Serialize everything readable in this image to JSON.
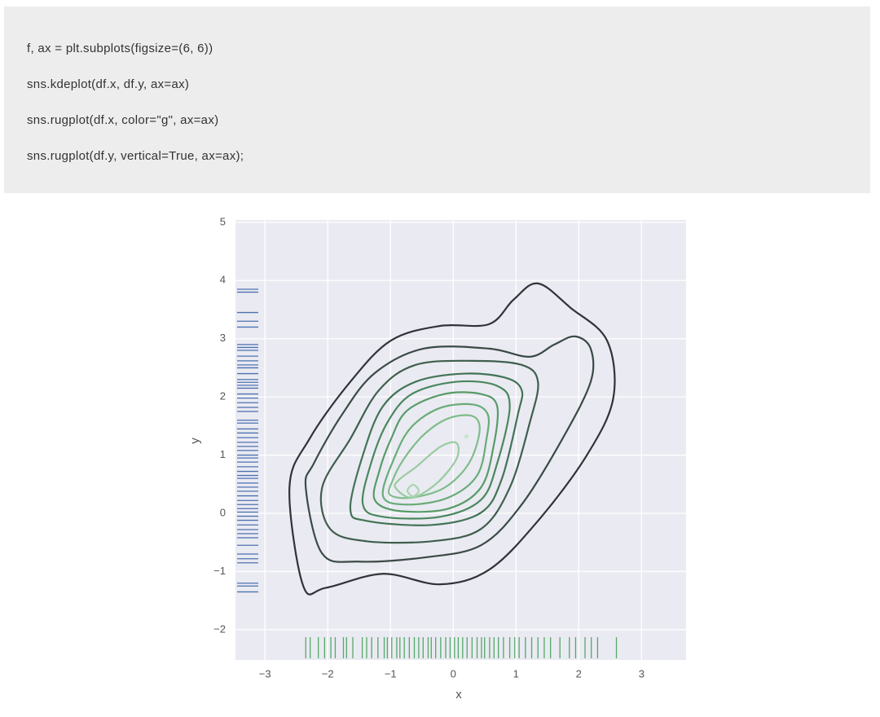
{
  "code": [
    "f, ax = plt.subplots(figsize=(6, 6))",
    "sns.kdeplot(df.x, df.y, ax=ax)",
    "sns.rugplot(df.x, color=\"g\", ax=ax)",
    "sns.rugplot(df.y, vertical=True, ax=ax);"
  ],
  "chart_data": {
    "type": "kde",
    "xlabel": "x",
    "ylabel": "y",
    "xlim": [
      -3.47,
      3.71
    ],
    "ylim": [
      -2.52,
      5.04
    ],
    "xticks": [
      {
        "value": -3,
        "label": "−3"
      },
      {
        "value": -2,
        "label": "−2"
      },
      {
        "value": -1,
        "label": "−1"
      },
      0,
      1,
      2,
      3
    ],
    "yticks": [
      {
        "value": -2,
        "label": "−2"
      },
      {
        "value": -1,
        "label": "−1"
      },
      0,
      1,
      2,
      3,
      4,
      5
    ],
    "grid": true,
    "contours": [
      {
        "color": "#2f3438",
        "x": [
          -2.61,
          -2.39,
          -2.03,
          -1.12,
          -0.21,
          0.57,
          1.35,
          2.13,
          2.55,
          2.45,
          1.87,
          1.35,
          0.96,
          0.57,
          -0.21,
          -0.99,
          -1.64,
          -2.29
        ],
        "y": [
          0.44,
          -1.25,
          -1.28,
          -1.04,
          -1.22,
          -0.97,
          -0.13,
          1.0,
          1.98,
          2.97,
          3.53,
          3.95,
          3.67,
          3.25,
          3.22,
          2.97,
          2.26,
          1.28
        ]
      },
      {
        "color": "#3a4a45",
        "x": [
          -2.35,
          -2.09,
          -1.51,
          -0.47,
          0.44,
          1.09,
          1.74,
          2.19,
          2.19,
          1.94,
          1.61,
          1.22,
          0.57,
          -0.47,
          -1.25,
          -1.77,
          -2.22
        ],
        "y": [
          0.44,
          -0.69,
          -0.83,
          -0.76,
          -0.55,
          0.15,
          1.28,
          2.26,
          2.83,
          3.04,
          2.9,
          2.69,
          2.83,
          2.83,
          2.41,
          1.7,
          0.86
        ]
      },
      {
        "color": "#3f5e4d",
        "x": [
          -2.09,
          -1.96,
          -1.38,
          -0.34,
          0.44,
          0.9,
          1.22,
          1.35,
          1.09,
          0.31,
          -0.6,
          -1.18,
          -1.64
        ],
        "y": [
          0.44,
          -0.27,
          -0.48,
          -0.48,
          -0.27,
          0.44,
          1.56,
          2.26,
          2.55,
          2.62,
          2.55,
          2.12,
          1.28
        ]
      },
      {
        "color": "#427355",
        "x": [
          -1.64,
          -1.38,
          -0.34,
          0.44,
          0.77,
          1.03,
          1.09,
          0.83,
          0.18,
          -0.6,
          -1.12,
          -1.44
        ],
        "y": [
          0.08,
          -0.13,
          -0.2,
          0.01,
          0.58,
          1.7,
          2.12,
          2.33,
          2.4,
          2.26,
          1.84,
          1.0
        ]
      },
      {
        "color": "#4a875d",
        "x": [
          -1.44,
          -1.12,
          -0.21,
          0.44,
          0.7,
          0.9,
          0.7,
          0.05,
          -0.66,
          -1.05,
          -1.31
        ],
        "y": [
          0.15,
          -0.06,
          -0.06,
          0.23,
          0.86,
          1.84,
          2.19,
          2.26,
          2.05,
          1.56,
          0.86
        ]
      },
      {
        "color": "#579b68",
        "x": [
          -1.25,
          -0.86,
          -0.08,
          0.44,
          0.64,
          0.7,
          0.44,
          -0.14,
          -0.73,
          -0.99,
          -1.18
        ],
        "y": [
          0.23,
          0.04,
          0.08,
          0.44,
          1.14,
          1.84,
          2.05,
          2.05,
          1.77,
          1.28,
          0.72
        ]
      },
      {
        "color": "#68ac77",
        "x": [
          -1.12,
          -0.73,
          -0.08,
          0.38,
          0.53,
          0.55,
          0.31,
          -0.21,
          -0.66,
          -0.92
        ],
        "y": [
          0.3,
          0.15,
          0.27,
          0.65,
          1.28,
          1.7,
          1.87,
          1.81,
          1.49,
          1.0
        ]
      },
      {
        "color": "#7fbd8a",
        "x": [
          -1.01,
          -0.66,
          -0.14,
          0.25,
          0.42,
          0.31,
          -0.08,
          -0.47,
          -0.79,
          -0.96
        ],
        "y": [
          0.32,
          0.27,
          0.44,
          0.86,
          1.42,
          1.67,
          1.63,
          1.35,
          0.93,
          0.58
        ]
      },
      {
        "color": "#98cba0",
        "x": [
          -0.92,
          -0.66,
          -0.27,
          0.05,
          0.05,
          -0.21,
          -0.6,
          -0.86
        ],
        "y": [
          0.44,
          0.27,
          0.51,
          0.93,
          1.21,
          1.14,
          0.79,
          0.58
        ]
      },
      {
        "color": "#a9d4b0",
        "x": [
          -0.73,
          -0.64,
          -0.55,
          -0.64
        ],
        "y": [
          0.39,
          0.29,
          0.39,
          0.49
        ]
      },
      {
        "color": "#c8e3c9",
        "x": [
          0.19,
          0.21,
          0.23,
          0.21
        ],
        "y": [
          1.32,
          1.3,
          1.32,
          1.34
        ]
      }
    ],
    "rug_x": {
      "color": "#55a868",
      "values": [
        -2.35,
        -2.28,
        -2.15,
        -2.05,
        -1.95,
        -1.88,
        -1.75,
        -1.7,
        -1.6,
        -1.45,
        -1.38,
        -1.3,
        -1.2,
        -1.1,
        -1.05,
        -0.98,
        -0.9,
        -0.85,
        -0.78,
        -0.7,
        -0.62,
        -0.55,
        -0.48,
        -0.4,
        -0.35,
        -0.28,
        -0.2,
        -0.12,
        -0.05,
        0.02,
        0.08,
        0.15,
        0.22,
        0.3,
        0.38,
        0.45,
        0.5,
        0.58,
        0.65,
        0.72,
        0.8,
        0.9,
        0.98,
        1.05,
        1.15,
        1.25,
        1.35,
        1.45,
        1.55,
        1.7,
        1.85,
        1.95,
        2.1,
        2.2,
        2.3,
        2.6
      ]
    },
    "rug_y": {
      "color": "#4c72b0",
      "values": [
        3.85,
        3.8,
        3.45,
        3.3,
        3.2,
        2.9,
        2.85,
        2.8,
        2.7,
        2.62,
        2.55,
        2.5,
        2.4,
        2.3,
        2.25,
        2.2,
        2.15,
        2.05,
        1.98,
        1.9,
        1.82,
        1.75,
        1.6,
        1.55,
        1.45,
        1.38,
        1.3,
        1.22,
        1.15,
        1.08,
        1.0,
        0.95,
        0.88,
        0.8,
        0.72,
        0.65,
        0.6,
        0.52,
        0.45,
        0.38,
        0.3,
        0.22,
        0.15,
        0.08,
        0.02,
        -0.05,
        -0.12,
        -0.2,
        -0.28,
        -0.35,
        -0.42,
        -0.55,
        -0.7,
        -0.78,
        -0.85,
        -1.2,
        -1.25,
        -1.35
      ]
    }
  }
}
